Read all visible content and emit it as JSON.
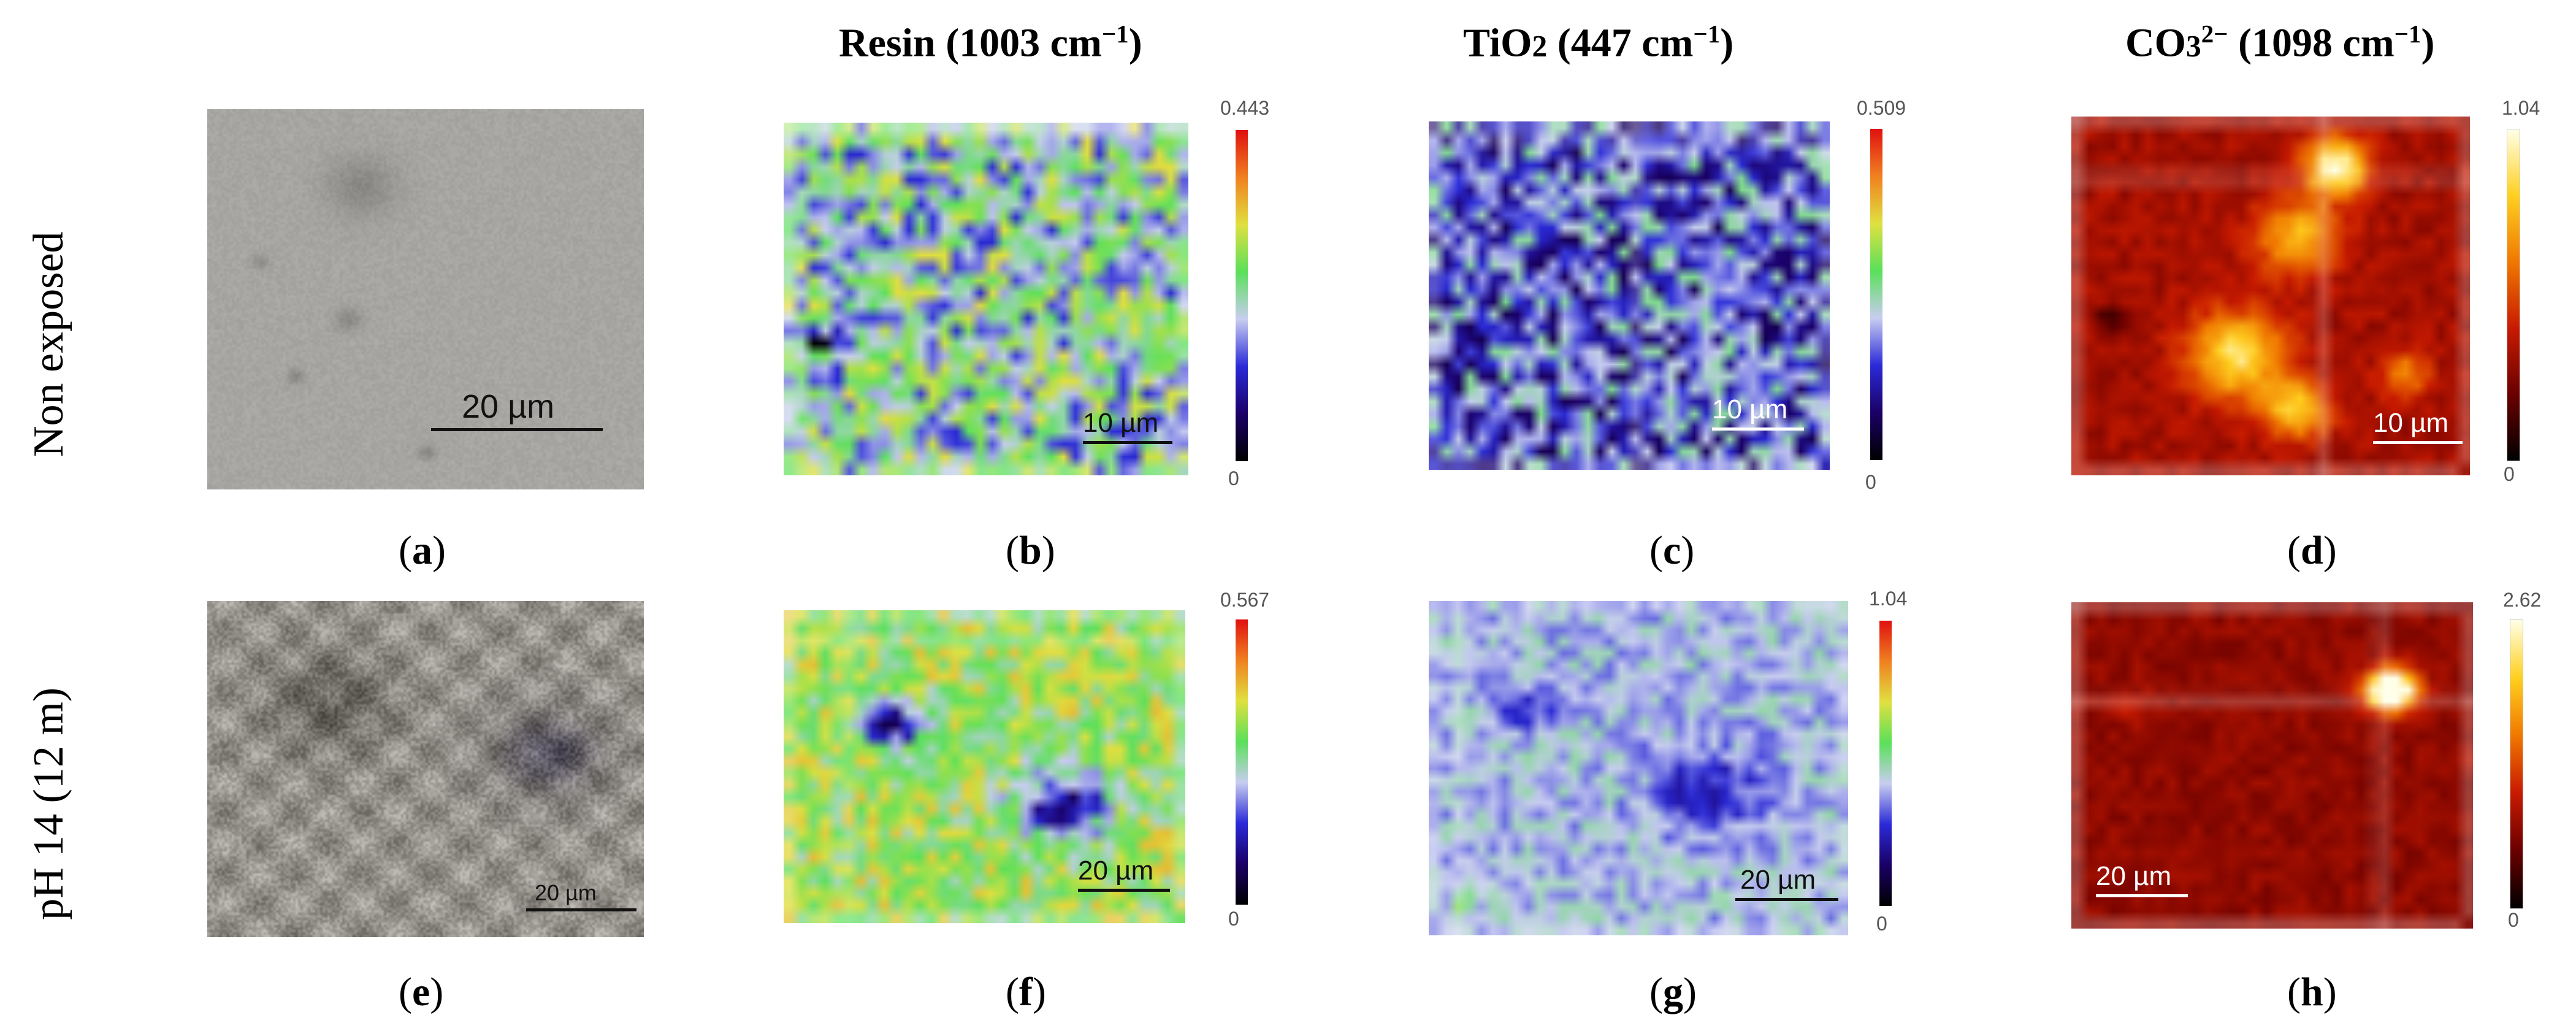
{
  "headers": {
    "resin": {
      "name": "Resin",
      "wavenumber": "(1003 cm",
      "unit_sup": "−1",
      "close": ")"
    },
    "tio2": {
      "name": "TiO",
      "name_sub": "2",
      "wavenumber": " (447 cm",
      "unit_sup": "−1",
      "close": ")"
    },
    "co3": {
      "name": "CO",
      "name_sub": "3",
      "name_sup": "2−",
      "wavenumber": " (1098 cm",
      "unit_sup": "−1",
      "close": ")"
    }
  },
  "rows": {
    "non_exposed": "Non exposed",
    "ph14": "pH 14 (12 m)"
  },
  "panels": {
    "a": {
      "label": "a",
      "scale": "20 µm"
    },
    "b": {
      "label": "b",
      "scale": "10 µm",
      "cbar_max": "0.443",
      "cbar_min": "0"
    },
    "c": {
      "label": "c",
      "scale": "10 µm",
      "cbar_max": "0.509",
      "cbar_min": "0"
    },
    "d": {
      "label": "d",
      "scale": "10 µm",
      "cbar_max": "1.04",
      "cbar_min": "0"
    },
    "e": {
      "label": "e",
      "scale": "20 µm"
    },
    "f": {
      "label": "f",
      "scale": "20 µm",
      "cbar_max": "0.567",
      "cbar_min": "0"
    },
    "g": {
      "label": "g",
      "scale": "20 µm",
      "cbar_max": "1.04",
      "cbar_min": "0"
    },
    "h": {
      "label": "h",
      "scale": "20 µm",
      "cbar_max": "2.62",
      "cbar_min": "0"
    }
  },
  "colormaps": {
    "spectral": [
      "#000000",
      "#1a0066",
      "#2a2ad8",
      "#c8cdf0",
      "#5ae05a",
      "#e0e040",
      "#f08020",
      "#e01010"
    ],
    "heat": [
      "#000000",
      "#6a0000",
      "#c81a00",
      "#f07800",
      "#ffd020",
      "#ffffe8"
    ]
  }
}
